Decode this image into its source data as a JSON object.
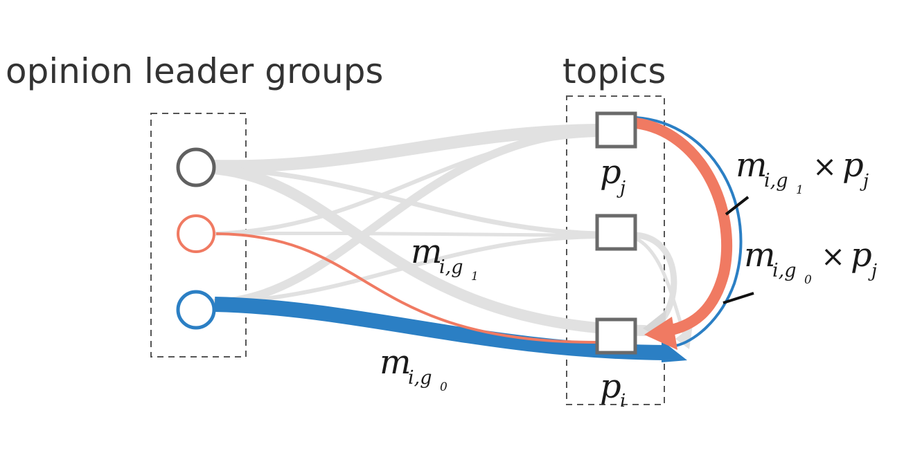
{
  "labels": {
    "groups_title": "opinion leader groups",
    "topics_title": "topics"
  },
  "math": {
    "m_g1": {
      "base": "m",
      "sub": "i,g",
      "subsub": "1"
    },
    "m_g0": {
      "base": "m",
      "sub": "i,g",
      "subsub": "0"
    },
    "m_g1_pj": {
      "base": "m",
      "sub": "i,g",
      "subsub": "1",
      "op": "×",
      "p": "p",
      "psub": "j"
    },
    "m_g0_pj": {
      "base": "m",
      "sub": "i,g",
      "subsub": "0",
      "op": "×",
      "p": "p",
      "psub": "j"
    },
    "pj": {
      "base": "p",
      "sub": "j"
    },
    "pi": {
      "base": "p",
      "sub": "i"
    }
  },
  "colors": {
    "group_gray": "#606060",
    "group_red": "#f07a62",
    "group_blue": "#2b7fc4",
    "flow_gray": "#e1e1e1",
    "topic_border": "#6a6a6a",
    "box_dash": "#555555"
  }
}
